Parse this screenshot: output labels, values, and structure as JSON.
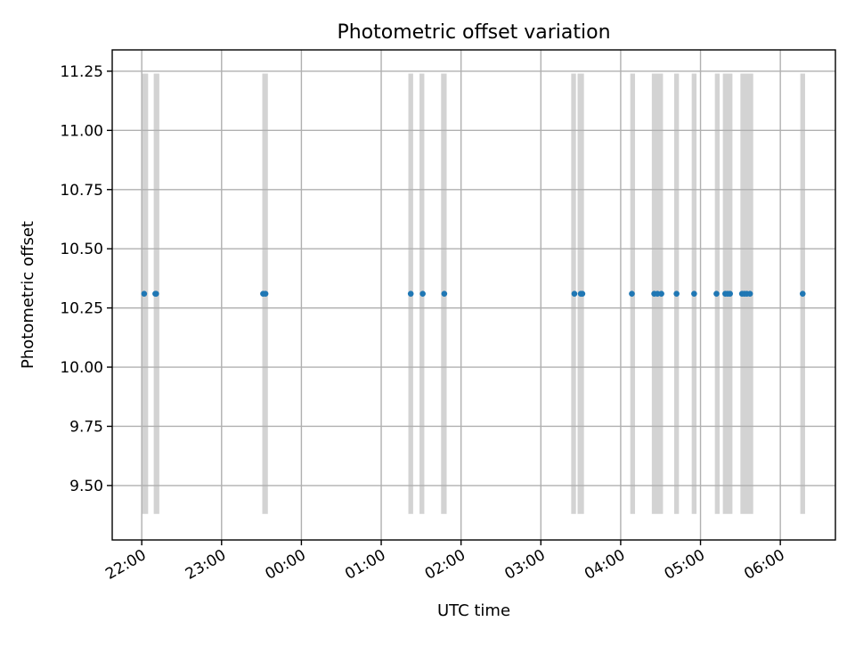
{
  "chart_data": {
    "type": "scatter",
    "title": "Photometric offset variation",
    "xlabel": "UTC time",
    "ylabel": "Photometric offset",
    "grid": true,
    "x_tick_labels": [
      "22:00",
      "23:00",
      "00:00",
      "01:00",
      "02:00",
      "03:00",
      "04:00",
      "05:00",
      "06:00"
    ],
    "x_tick_hours": [
      0,
      1,
      2,
      3,
      4,
      5,
      6,
      7,
      8
    ],
    "xlim_hours": [
      -0.37,
      8.69
    ],
    "y_ticks": [
      9.5,
      9.75,
      10.0,
      10.25,
      10.5,
      10.75,
      11.0,
      11.25
    ],
    "y_tick_labels": [
      "9.50",
      "9.75",
      "10.00",
      "10.25",
      "10.50",
      "10.75",
      "11.00",
      "11.25"
    ],
    "ylim": [
      9.27,
      11.34
    ],
    "series": [
      {
        "marker_color": "#1f77b4",
        "x_hours": [
          0.03,
          0.17,
          0.18,
          1.52,
          1.55,
          3.37,
          3.52,
          3.79,
          5.42,
          5.5,
          5.52,
          6.14,
          6.42,
          6.46,
          6.51,
          6.7,
          6.92,
          7.2,
          7.31,
          7.34,
          7.37,
          7.52,
          7.55,
          7.58,
          7.62,
          8.28
        ],
        "y": [
          10.31,
          10.31,
          10.31,
          10.31,
          10.31,
          10.31,
          10.31,
          10.31,
          10.31,
          10.31,
          10.31,
          10.31,
          10.31,
          10.31,
          10.31,
          10.31,
          10.31,
          10.31,
          10.31,
          10.31,
          10.31,
          10.31,
          10.31,
          10.31,
          10.31,
          10.31
        ]
      }
    ],
    "bands": {
      "color": "#d3d3d3",
      "y_range": [
        9.38,
        11.24
      ],
      "intervals_hours": [
        [
          0.0,
          0.08
        ],
        [
          0.15,
          0.22
        ],
        [
          1.51,
          1.58
        ],
        [
          3.34,
          3.4
        ],
        [
          3.48,
          3.54
        ],
        [
          3.75,
          3.82
        ],
        [
          5.38,
          5.44
        ],
        [
          5.46,
          5.54
        ],
        [
          6.12,
          6.18
        ],
        [
          6.39,
          6.53
        ],
        [
          6.67,
          6.73
        ],
        [
          6.89,
          6.95
        ],
        [
          7.18,
          7.24
        ],
        [
          7.28,
          7.4
        ],
        [
          7.5,
          7.66
        ],
        [
          8.25,
          8.31
        ]
      ]
    }
  }
}
